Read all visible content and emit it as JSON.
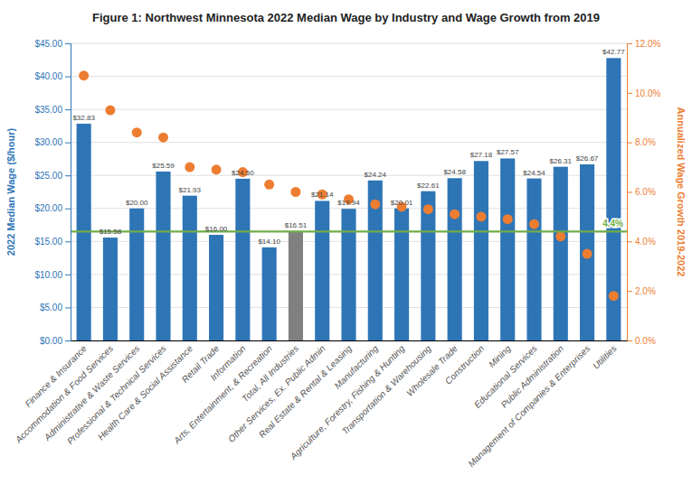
{
  "chart_data": {
    "type": "bar",
    "title": "Figure 1:  Northwest Minnesota 2022 Median Wage by Industry and Wage Growth from 2019",
    "ylabel": "2022 Median Wage ($/hour)",
    "y2label": "Annualized Wage Growth 2019-2022",
    "categories": [
      "Finance & Insurance",
      "Accommodation & Food Services",
      "Administrative & Waste Services",
      "Professional & Technical Services",
      "Health Care & Social Assistance",
      "Retail Trade",
      "Information",
      "Arts, Entertainment, & Recreation",
      "Total, All Industries",
      "Other Services, Ex. Public Admin",
      "Real Estate & Rental & Leasing",
      "Manufacturing",
      "Agriculture, Forestry, Fishing & Hunting",
      "Transportation & Warehousing",
      "Wholesale Trade",
      "Construction",
      "Mining",
      "Educational Services",
      "Public Administration",
      "Management of Companies & Enterprises",
      "Utilities"
    ],
    "series": [
      {
        "type": "bar",
        "color": "#2E75B6",
        "colors": [
          "#2E75B6",
          "#2E75B6",
          "#2E75B6",
          "#2E75B6",
          "#2E75B6",
          "#2E75B6",
          "#2E75B6",
          "#2E75B6",
          "#808080",
          "#2E75B6",
          "#2E75B6",
          "#2E75B6",
          "#2E75B6",
          "#2E75B6",
          "#2E75B6",
          "#2E75B6",
          "#2E75B6",
          "#2E75B6",
          "#2E75B6",
          "#2E75B6",
          "#2E75B6"
        ],
        "values": [
          32.83,
          15.58,
          20.0,
          25.59,
          21.93,
          16.0,
          24.5,
          14.1,
          16.51,
          21.14,
          19.94,
          24.24,
          20.01,
          22.61,
          24.58,
          27.18,
          27.57,
          24.54,
          26.31,
          26.67,
          42.77
        ],
        "value_labels": [
          "$32.83",
          "$15.58",
          "$20.00",
          "$25.59",
          "$21.93",
          "$16.00",
          "$24.50",
          "$14.10",
          "$16.51",
          "$21.14",
          "$19.94",
          "$24.24",
          "$20.01",
          "$22.61",
          "$24.58",
          "$27.18",
          "$27.57",
          "$24.54",
          "$26.31",
          "$26.67",
          "$42.77"
        ]
      },
      {
        "type": "scatter",
        "axis": "y2",
        "color": "#ED7D31",
        "values": [
          10.7,
          9.3,
          8.4,
          8.2,
          7.0,
          6.9,
          6.8,
          6.3,
          6.0,
          5.9,
          5.7,
          5.5,
          5.4,
          5.3,
          5.1,
          5.0,
          4.9,
          4.7,
          4.2,
          3.5,
          1.8
        ]
      }
    ],
    "lines": [
      {
        "axis": "y2",
        "value": 4.4,
        "label": "4.4%",
        "color": "#70AD47"
      }
    ],
    "ylim": [
      0,
      45
    ],
    "yticks": [
      {
        "value": 0,
        "label": "$0.00"
      },
      {
        "value": 5,
        "label": "$5.00"
      },
      {
        "value": 10,
        "label": "$10.00"
      },
      {
        "value": 15,
        "label": "$15.00"
      },
      {
        "value": 20,
        "label": "$20.00"
      },
      {
        "value": 25,
        "label": "$25.00"
      },
      {
        "value": 30,
        "label": "$30.00"
      },
      {
        "value": 35,
        "label": "$35.00"
      },
      {
        "value": 40,
        "label": "$40.00"
      },
      {
        "value": 45,
        "label": "$45.00"
      }
    ],
    "y2lim": [
      0,
      12
    ],
    "y2ticks": [
      {
        "value": 0,
        "label": "0.0%"
      },
      {
        "value": 2,
        "label": "2.0%"
      },
      {
        "value": 4,
        "label": "4.0%"
      },
      {
        "value": 6,
        "label": "6.0%"
      },
      {
        "value": 8,
        "label": "8.0%"
      },
      {
        "value": 10,
        "label": "10.0%"
      },
      {
        "value": 12,
        "label": "12.0%"
      }
    ],
    "grid": true
  }
}
